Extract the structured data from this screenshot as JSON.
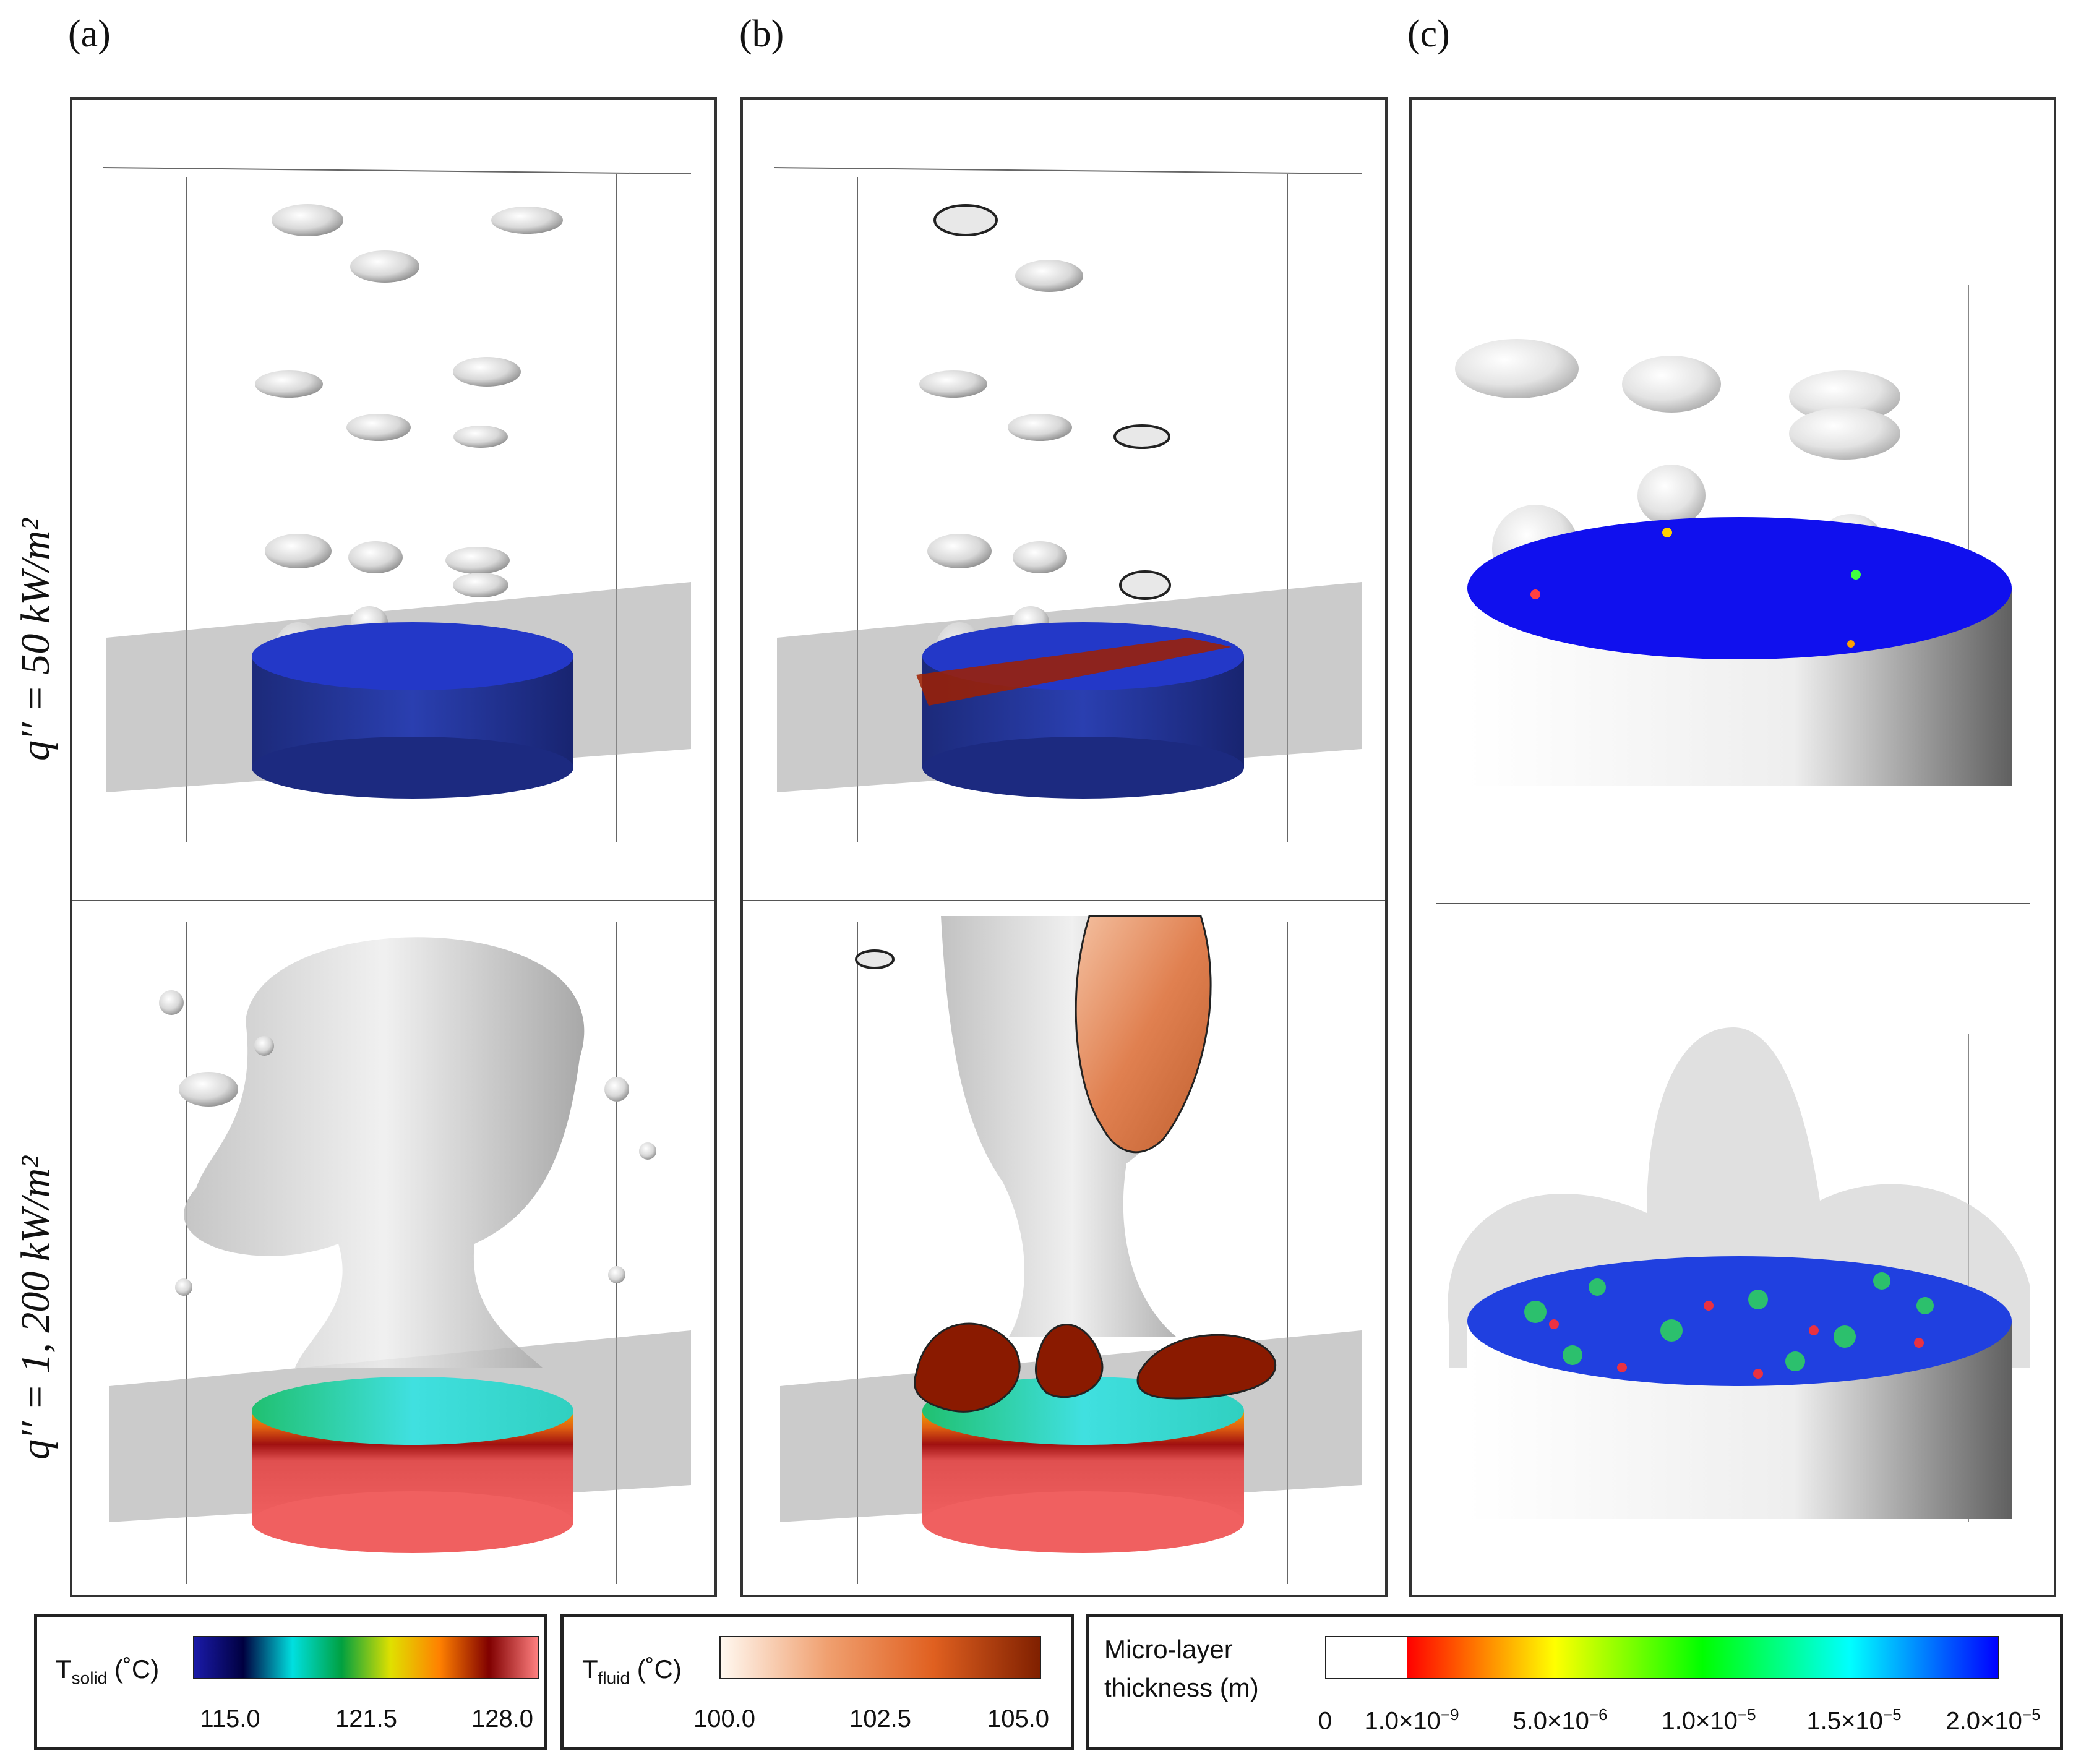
{
  "panels": {
    "a": {
      "label": "(a)"
    },
    "b": {
      "label": "(b)"
    },
    "c": {
      "label": "(c)"
    }
  },
  "rows": {
    "top": {
      "label": "q′′ = 50 kW/m²"
    },
    "bottom": {
      "label": "q′′ = 1, 200 kW/m²"
    }
  },
  "legends": {
    "solid": {
      "title_main": "T",
      "title_sub": "solid",
      "title_unit": " (˚C)",
      "ticks": [
        "115.0",
        "121.5",
        "128.0"
      ],
      "colors": [
        "#1a1aa8",
        "#000040",
        "#00e0e0",
        "#00a040",
        "#e0e000",
        "#ff8000",
        "#800000",
        "#ff8080"
      ]
    },
    "fluid": {
      "title_main": "T",
      "title_sub": "fluid",
      "title_unit": " (˚C)",
      "ticks": [
        "100.0",
        "102.5",
        "105.0"
      ],
      "colors": [
        "#fff8f0",
        "#f0a070",
        "#e06020",
        "#802000"
      ]
    },
    "micro": {
      "title_line1": "Micro-layer",
      "title_line2": "thickness (m)",
      "ticks": [
        {
          "base": "0",
          "exp": ""
        },
        {
          "base": "1.0×10",
          "exp": "−9"
        },
        {
          "base": "5.0×10",
          "exp": "−6"
        },
        {
          "base": "1.0×10",
          "exp": "−5"
        },
        {
          "base": "1.5×10",
          "exp": "−5"
        },
        {
          "base": "2.0×10",
          "exp": "−5"
        }
      ],
      "colors": [
        "#ffffff",
        "#ff0000",
        "#ffff00",
        "#00ff00",
        "#00ffff",
        "#0000ff"
      ]
    }
  }
}
